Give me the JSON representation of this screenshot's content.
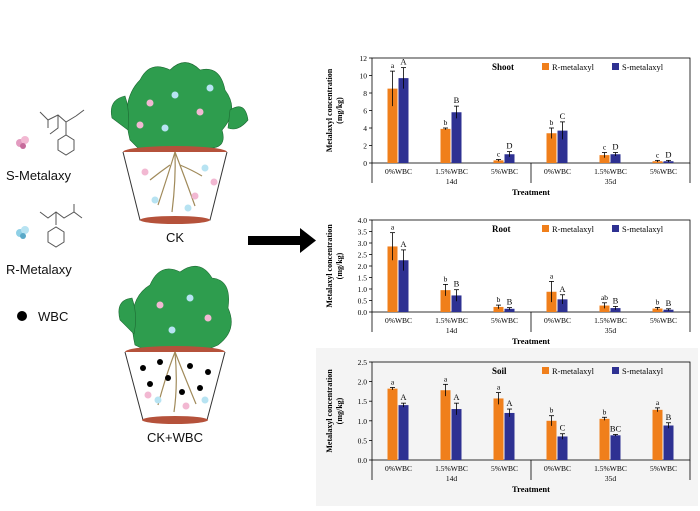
{
  "legend_left": {
    "s_metalaxy": "S-Metalaxy",
    "r_metalaxy": "R-Metalaxy",
    "wbc": "WBC"
  },
  "pots": {
    "ck": "CK",
    "ck_wbc": "CK+WBC"
  },
  "colors": {
    "r_series": "#f07f1b",
    "s_series": "#2e3192",
    "pot_rim": "#b5523b",
    "leaf": "#2e9d4e",
    "root": "#a08a5a"
  },
  "chart_data": [
    {
      "type": "bar",
      "title": "Shoot",
      "ylabel": "Metalaxyl concentration (mg/kg)",
      "xlabel": "Treatment",
      "ylim": [
        0,
        12
      ],
      "yticks": [
        "0",
        "2",
        "4",
        "6",
        "8",
        "10",
        "12"
      ],
      "categories": [
        "0%WBC",
        "1.5%WBC",
        "5%WBC",
        "0%WBC",
        "1.5%WBC",
        "5%WBC"
      ],
      "groups": [
        "14d",
        "35d"
      ],
      "series": [
        {
          "name": "R-metalaxyl",
          "values": [
            8.5,
            3.9,
            0.3,
            3.4,
            0.9,
            0.2
          ],
          "errors": [
            2.0,
            0.1,
            0.1,
            0.6,
            0.3,
            0.1
          ],
          "letters": [
            "a",
            "b",
            "c",
            "b",
            "c",
            "c"
          ]
        },
        {
          "name": "S-metalaxyl",
          "values": [
            9.7,
            5.8,
            1.0,
            3.7,
            1.0,
            0.2
          ],
          "errors": [
            1.2,
            0.7,
            0.3,
            1.0,
            0.2,
            0.1
          ],
          "letters": [
            "A",
            "B",
            "D",
            "C",
            "D",
            "D"
          ]
        }
      ]
    },
    {
      "type": "bar",
      "title": "Root",
      "ylabel": "Metalaxyl concentration (mg/kg)",
      "xlabel": "Treatment",
      "ylim": [
        0,
        4
      ],
      "yticks": [
        "0.0",
        "0.5",
        "1.0",
        "1.5",
        "2.0",
        "2.5",
        "3.0",
        "3.5",
        "4.0"
      ],
      "categories": [
        "0%WBC",
        "1.5%WBC",
        "5%WBC",
        "0%WBC",
        "1.5%WBC",
        "5%WBC"
      ],
      "groups": [
        "14d",
        "35d"
      ],
      "series": [
        {
          "name": "R-metalaxyl",
          "values": [
            2.85,
            0.95,
            0.22,
            0.88,
            0.28,
            0.15
          ],
          "errors": [
            0.6,
            0.25,
            0.08,
            0.45,
            0.12,
            0.05
          ],
          "letters": [
            "a",
            "b",
            "b",
            "a",
            "ab",
            "b"
          ]
        },
        {
          "name": "S-metalaxyl",
          "values": [
            2.25,
            0.72,
            0.14,
            0.55,
            0.17,
            0.1
          ],
          "errors": [
            0.45,
            0.25,
            0.05,
            0.2,
            0.07,
            0.04
          ],
          "letters": [
            "A",
            "B",
            "B",
            "A",
            "B",
            "B"
          ]
        }
      ]
    },
    {
      "type": "bar",
      "title": "Soil",
      "ylabel": "Metalaxyl concentration (mg/kg)",
      "xlabel": "Treatment",
      "ylim": [
        0,
        2.5
      ],
      "yticks": [
        "0.0",
        "0.5",
        "1.0",
        "1.5",
        "2.0",
        "2.5"
      ],
      "categories": [
        "0%WBC",
        "1.5%WBC",
        "5%WBC",
        "0%WBC",
        "1.5%WBC",
        "5%WBC"
      ],
      "groups": [
        "14d",
        "35d"
      ],
      "series": [
        {
          "name": "R-metalaxyl",
          "values": [
            1.82,
            1.78,
            1.57,
            1.0,
            1.05,
            1.28
          ],
          "errors": [
            0.03,
            0.15,
            0.15,
            0.13,
            0.04,
            0.05
          ],
          "letters": [
            "a",
            "a",
            "a",
            "b",
            "b",
            "a"
          ]
        },
        {
          "name": "S-metalaxyl",
          "values": [
            1.4,
            1.3,
            1.2,
            0.6,
            0.63,
            0.88
          ],
          "errors": [
            0.05,
            0.15,
            0.1,
            0.07,
            0.02,
            0.07
          ],
          "letters": [
            "A",
            "A",
            "A",
            "C",
            "BC",
            "B"
          ]
        }
      ]
    }
  ]
}
